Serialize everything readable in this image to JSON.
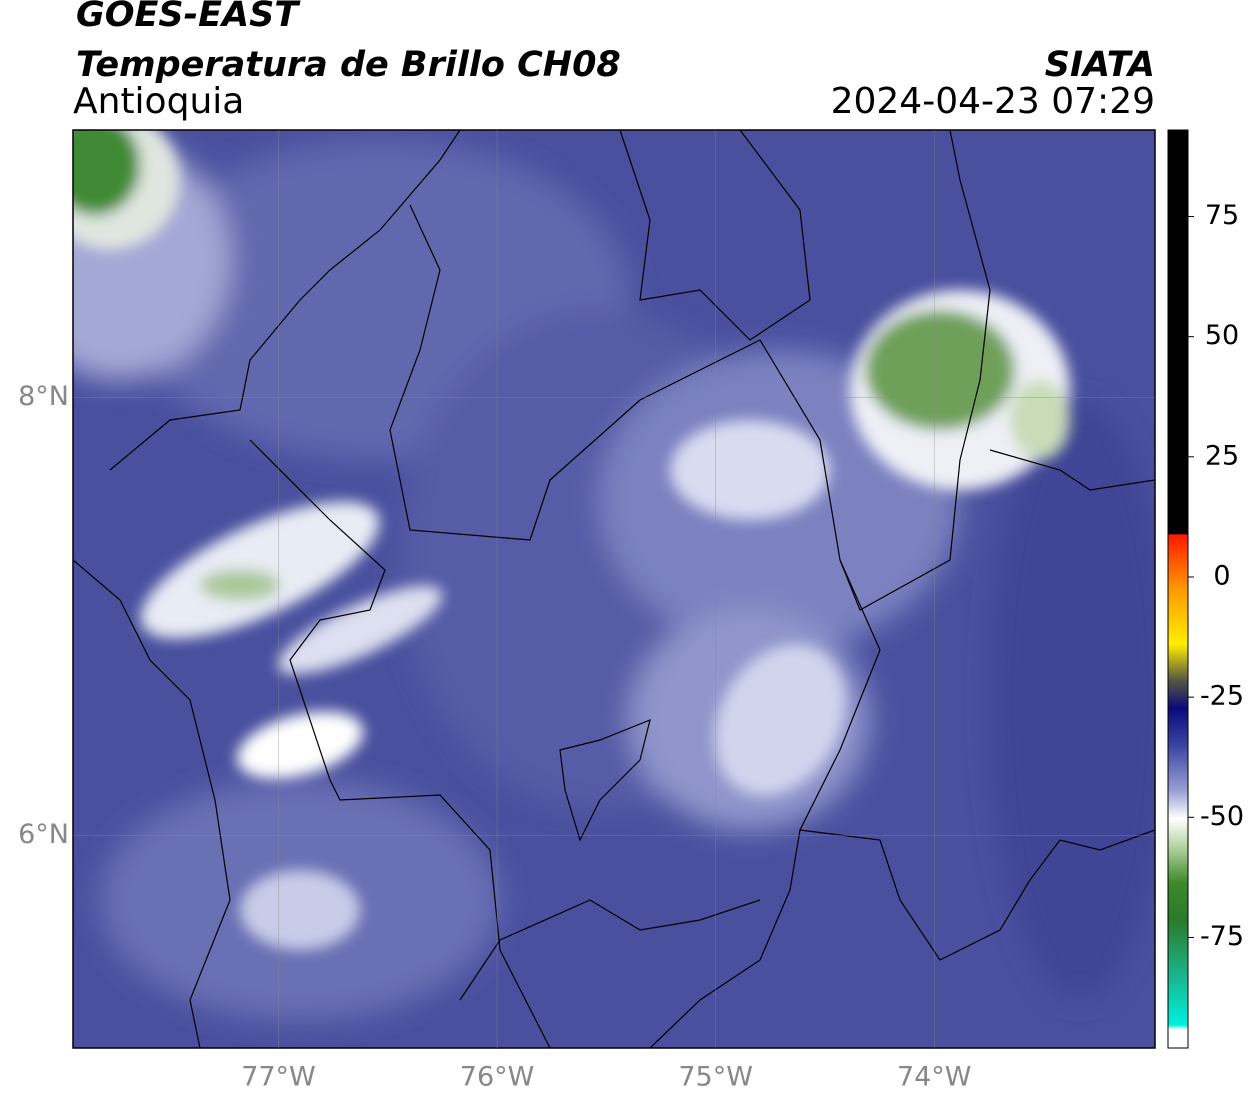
{
  "chart_data": {
    "type": "map",
    "title": "GOES-EAST",
    "subtitle": "Temperatura de Brillo CH08",
    "region": "Antioquia",
    "source": "SIATA",
    "timestamp": "2024-04-23 07:29",
    "xlim": [
      -77.94,
      -72.99
    ],
    "ylim": [
      5.03,
      9.22
    ],
    "xticks": [
      {
        "value": -77,
        "label": "77°W"
      },
      {
        "value": -76,
        "label": "76°W"
      },
      {
        "value": -75,
        "label": "75°W"
      },
      {
        "value": -74,
        "label": "74°W"
      }
    ],
    "yticks": [
      {
        "value": 6,
        "label": "6°N"
      },
      {
        "value": 8,
        "label": "8°N"
      }
    ],
    "grid": true,
    "colorbar_lim": [
      -98,
      93
    ],
    "colorbar_ticks": [
      -75,
      -50,
      -25,
      0,
      25,
      50,
      75
    ]
  }
}
